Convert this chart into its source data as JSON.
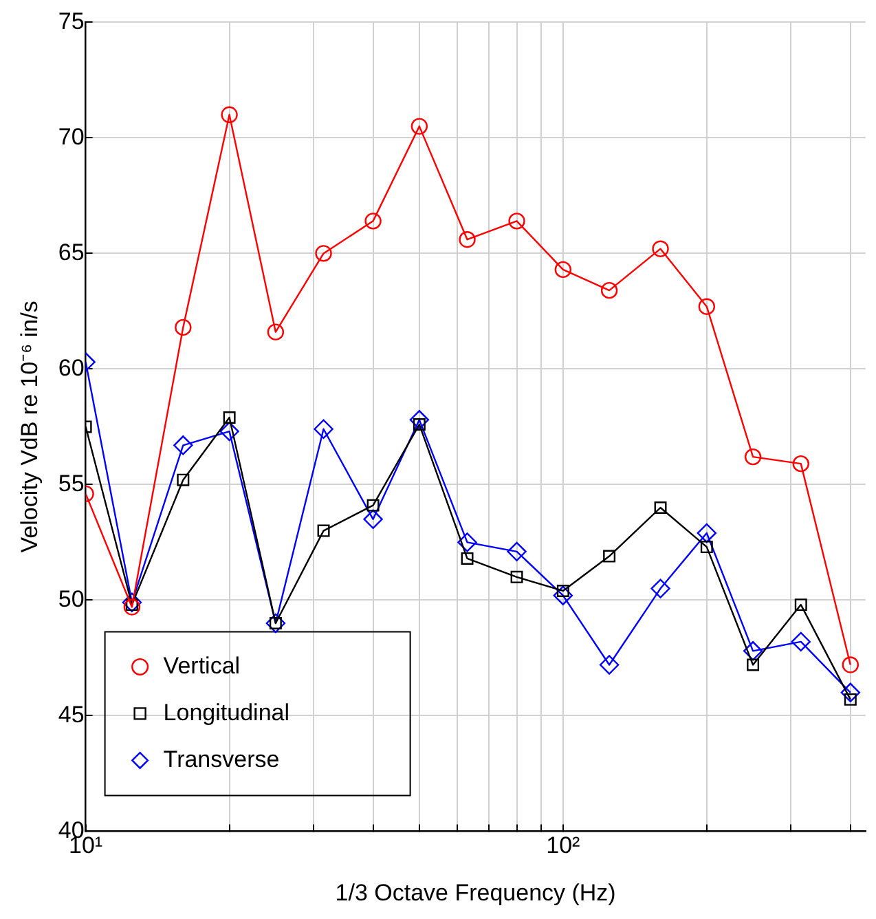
{
  "chart_data": {
    "type": "line",
    "xlabel": "1/3 Octave Frequency (Hz)",
    "ylabel": "Velocity VdB re 10⁻⁶ in/s",
    "x": [
      10,
      12.5,
      16,
      20,
      25,
      31.5,
      40,
      50,
      63,
      80,
      100,
      125,
      160,
      200,
      250,
      315,
      400
    ],
    "series": [
      {
        "name": "Vertical",
        "color": "#ff0000",
        "marker": "circle",
        "values": [
          54.6,
          49.7,
          61.8,
          71.0,
          61.6,
          65.0,
          66.4,
          70.5,
          65.6,
          66.4,
          64.3,
          63.4,
          65.2,
          62.7,
          56.2,
          55.9,
          47.2
        ]
      },
      {
        "name": "Longitudinal",
        "color": "#000000",
        "marker": "square",
        "values": [
          57.5,
          49.8,
          55.2,
          57.9,
          49.0,
          53.0,
          54.1,
          57.6,
          51.8,
          51.0,
          50.4,
          51.9,
          54.0,
          52.3,
          47.2,
          49.8,
          45.7
        ]
      },
      {
        "name": "Transverse",
        "color": "#0000ff",
        "marker": "diamond",
        "values": [
          60.3,
          49.9,
          56.7,
          57.3,
          49.0,
          57.4,
          53.5,
          57.8,
          52.5,
          52.1,
          50.2,
          47.2,
          50.5,
          52.9,
          47.8,
          48.2,
          46.0
        ]
      }
    ],
    "xlim": [
      10,
      430
    ],
    "xticks": [
      {
        "value": 10,
        "label": "10¹"
      },
      {
        "value": 20,
        "label": null
      },
      {
        "value": 30,
        "label": null
      },
      {
        "value": 40,
        "label": null
      },
      {
        "value": 50,
        "label": null
      },
      {
        "value": 60,
        "label": null
      },
      {
        "value": 70,
        "label": null
      },
      {
        "value": 80,
        "label": null
      },
      {
        "value": 90,
        "label": null
      },
      {
        "value": 100,
        "label": "10²"
      },
      {
        "value": 200,
        "label": null
      },
      {
        "value": 300,
        "label": null
      },
      {
        "value": 400,
        "label": null
      }
    ],
    "ylim": [
      40,
      75
    ],
    "yticks": [
      40,
      45,
      50,
      55,
      60,
      65,
      70,
      75
    ],
    "log": "x",
    "grid": true,
    "legend": "bottom left",
    "line_style": "solid"
  }
}
